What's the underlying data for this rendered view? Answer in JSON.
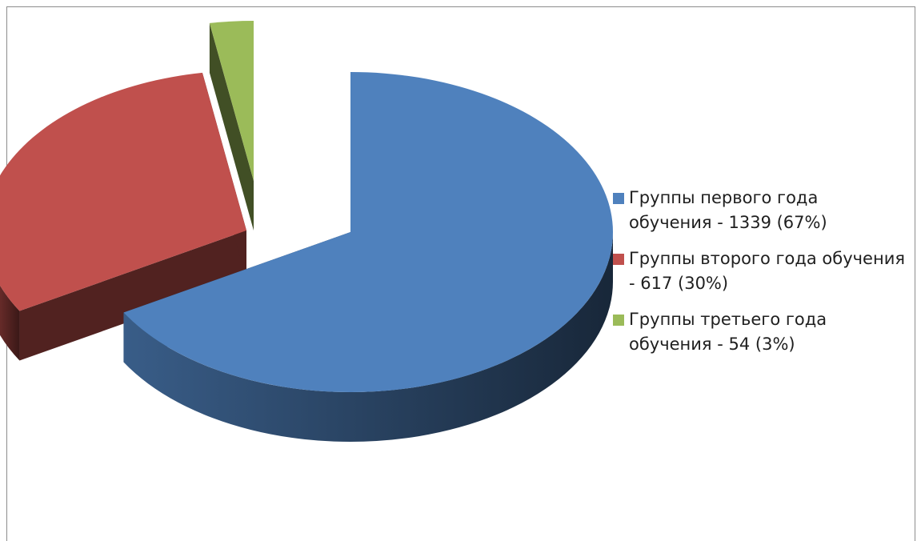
{
  "chart_data": {
    "type": "pie",
    "title": "",
    "slices": [
      {
        "label": "Группы первого года обучения - 1339 (67%)",
        "value": 1339,
        "percent": 67,
        "color": "#4f81bd"
      },
      {
        "label": "Группы второго года обучения - 617 (30%)",
        "value": 617,
        "percent": 30,
        "color": "#c0504d"
      },
      {
        "label": "Группы третьего года обучения - 54 (3%)",
        "value": 54,
        "percent": 3,
        "color": "#9bbb59"
      }
    ],
    "legend_position": "right",
    "style": "3d-exploded"
  }
}
